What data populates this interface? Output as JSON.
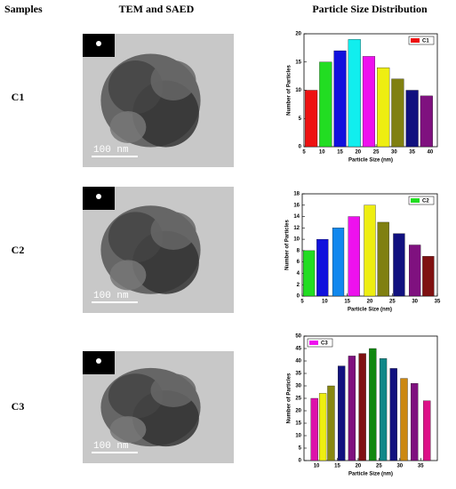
{
  "headers": [
    "Samples",
    "TEM and SAED",
    "Particle Size Distribution"
  ],
  "rows": [
    {
      "sample": "C1",
      "scale_bar": "100 nm"
    },
    {
      "sample": "C2",
      "scale_bar": "100 nm"
    },
    {
      "sample": "C3",
      "scale_bar": "100 nm"
    }
  ],
  "chart_data": [
    {
      "type": "bar",
      "x_label": "Particle Size (nm)",
      "y_label": "Number of Particles",
      "series": [
        {
          "name": "C1",
          "color": "#ee1111",
          "x": [
            7,
            11,
            15,
            19,
            23,
            27,
            31,
            35,
            39
          ],
          "values": [
            10,
            15,
            17,
            19,
            16,
            14,
            12,
            10,
            9
          ],
          "colors": [
            "#ee1111",
            "#22dd22",
            "#1111dd",
            "#11eeee",
            "#ee11ee",
            "#eeee11",
            "#808011",
            "#11117f",
            "#7f117f"
          ]
        }
      ],
      "xlim": [
        5,
        42
      ],
      "xticks": [
        5,
        10,
        15,
        20,
        25,
        30,
        35,
        40
      ],
      "ylim": [
        0,
        20
      ],
      "yticks": [
        0,
        5,
        10,
        15,
        20
      ],
      "legend": "upper right"
    },
    {
      "type": "bar",
      "x_label": "Particle Size (nm)",
      "y_label": "Number of Particles",
      "series": [
        {
          "name": "C2",
          "color": "#22dd22",
          "x": [
            6.5,
            9.5,
            13,
            16.5,
            20,
            23,
            26.5,
            30,
            33
          ],
          "values": [
            8,
            10,
            12,
            14,
            16,
            13,
            11,
            9,
            7
          ],
          "colors": [
            "#22dd22",
            "#1111dd",
            "#1188ee",
            "#ee11ee",
            "#eeee11",
            "#808011",
            "#11117f",
            "#7f117f",
            "#7f1111"
          ]
        }
      ],
      "xlim": [
        5,
        35
      ],
      "xticks": [
        5,
        10,
        15,
        20,
        25,
        30,
        35
      ],
      "ylim": [
        0,
        18
      ],
      "yticks": [
        0,
        2,
        4,
        6,
        8,
        10,
        12,
        14,
        16,
        18
      ],
      "legend": "upper right"
    },
    {
      "type": "bar",
      "x_label": "Particle Size (nm)",
      "y_label": "Number of Particles",
      "series": [
        {
          "name": "C3",
          "color": "#ee11ee",
          "x": [
            9.5,
            11.5,
            13.5,
            16,
            18.5,
            21,
            23.5,
            26,
            28.5,
            31,
            33.5,
            36.5
          ],
          "values": [
            25,
            27,
            30,
            38,
            42,
            43,
            45,
            41,
            37,
            33,
            31,
            24
          ],
          "colors": [
            "#dd11aa",
            "#eeee11",
            "#888811",
            "#11117f",
            "#7f117f",
            "#7f1111",
            "#118811",
            "#118888",
            "#11117f",
            "#cc8811",
            "#7f117f",
            "#dd1188"
          ]
        }
      ],
      "xlim": [
        7,
        39
      ],
      "xticks": [
        10,
        15,
        20,
        25,
        30,
        35
      ],
      "ylim": [
        0,
        50
      ],
      "yticks": [
        0,
        5,
        10,
        15,
        20,
        25,
        30,
        35,
        40,
        45,
        50
      ],
      "legend": "upper left"
    }
  ]
}
